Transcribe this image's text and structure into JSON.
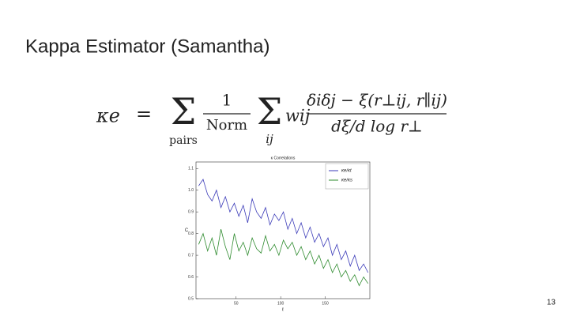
{
  "slide": {
    "title": "Kappa Estimator (Samantha)",
    "page_number": "13"
  },
  "formula": {
    "lhs": "κe",
    "equals": "=",
    "sum1": "Σ",
    "sum1_sub": "pairs",
    "frac1_num": "1",
    "frac1_den": "Norm",
    "sum2": "Σ",
    "sum2_sub": "ij",
    "weight": "wij",
    "frac2_num": "δiδj − ξ(r⊥ij, r∥ij)",
    "frac2_den": "dξ/d log r⊥"
  },
  "chart_data": {
    "type": "line",
    "title": "κ Correlations",
    "x_label": "ℓ",
    "y_label": "C",
    "x": [
      8,
      13,
      18,
      23,
      28,
      33,
      38,
      43,
      48,
      53,
      58,
      63,
      68,
      73,
      78,
      83,
      88,
      93,
      98,
      103,
      108,
      113,
      118,
      123,
      128,
      133,
      138,
      143,
      148,
      153,
      158,
      163,
      168,
      173,
      178,
      183,
      188,
      193,
      198
    ],
    "series": [
      {
        "name": "κe/κt",
        "color": "#3a3ab8",
        "values": [
          1.02,
          1.05,
          0.98,
          0.95,
          1.0,
          0.92,
          0.97,
          0.9,
          0.94,
          0.88,
          0.93,
          0.85,
          0.96,
          0.9,
          0.87,
          0.92,
          0.84,
          0.89,
          0.86,
          0.9,
          0.82,
          0.87,
          0.8,
          0.85,
          0.78,
          0.83,
          0.76,
          0.8,
          0.74,
          0.78,
          0.7,
          0.75,
          0.68,
          0.72,
          0.65,
          0.7,
          0.63,
          0.66,
          0.62
        ]
      },
      {
        "name": "κe/κs",
        "color": "#2e8b2e",
        "values": [
          0.75,
          0.8,
          0.72,
          0.78,
          0.7,
          0.82,
          0.74,
          0.68,
          0.8,
          0.72,
          0.76,
          0.7,
          0.78,
          0.73,
          0.71,
          0.79,
          0.72,
          0.75,
          0.7,
          0.77,
          0.73,
          0.76,
          0.7,
          0.74,
          0.68,
          0.72,
          0.66,
          0.7,
          0.64,
          0.68,
          0.62,
          0.66,
          0.6,
          0.63,
          0.58,
          0.61,
          0.56,
          0.6,
          0.57
        ]
      }
    ],
    "xlim": [
      5,
      200
    ],
    "xticks": [
      50,
      100,
      150
    ],
    "ylim": [
      0.5,
      1.13
    ],
    "yticks": [
      1.1,
      {
        "value": 1,
        "label": "1.0"
      },
      0.9,
      0.8,
      0.7,
      0.6,
      0.5
    ],
    "legend": "upper right"
  }
}
